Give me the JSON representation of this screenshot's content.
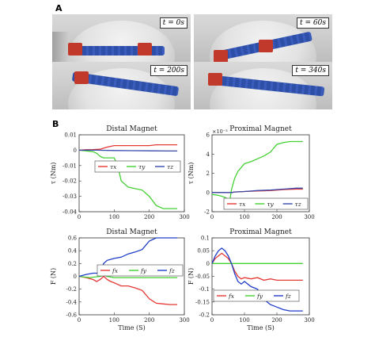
{
  "panel_a": {
    "letter": "A",
    "photos": [
      {
        "label": "t = 0s"
      },
      {
        "label": "t = 60s"
      },
      {
        "label": "t = 200s"
      },
      {
        "label": "t = 340s"
      }
    ]
  },
  "panel_b": {
    "letter": "B"
  },
  "chart_data": [
    {
      "type": "line",
      "title": "Distal Magnet",
      "xlabel": "",
      "ylabel": "τ (Nm)",
      "xlim": [
        0,
        300
      ],
      "ylim": [
        -0.04,
        0.01
      ],
      "xticks": [
        "0",
        "100",
        "200",
        "300"
      ],
      "yticks": [
        "0.01",
        "0",
        "-0.01",
        "-0.02",
        "-0.03",
        "-0.04"
      ],
      "legend_position": "center-right",
      "series": [
        {
          "name": "τx",
          "color": "#e53935",
          "x": [
            0,
            20,
            40,
            60,
            80,
            100,
            120,
            140,
            160,
            180,
            200,
            220,
            240,
            260,
            280
          ],
          "y": [
            0,
            0.0003,
            0.0004,
            0.0006,
            0.002,
            0.003,
            0.003,
            0.003,
            0.003,
            0.003,
            0.003,
            0.0035,
            0.0035,
            0.0035,
            0.0035
          ]
        },
        {
          "name": "τy",
          "color": "#43d133",
          "x": [
            0,
            20,
            40,
            50,
            60,
            70,
            80,
            100,
            110,
            120,
            140,
            160,
            180,
            200,
            220,
            240,
            260,
            280
          ],
          "y": [
            0,
            -0.0005,
            -0.001,
            -0.002,
            -0.004,
            -0.005,
            -0.005,
            -0.005,
            -0.01,
            -0.02,
            -0.024,
            -0.025,
            -0.026,
            -0.03,
            -0.036,
            -0.038,
            -0.038,
            -0.038
          ]
        },
        {
          "name": "τz",
          "color": "#3949ab",
          "x": [
            0,
            50,
            100,
            150,
            200,
            250,
            280
          ],
          "y": [
            0,
            0,
            -0.0002,
            -0.0003,
            -0.0004,
            -0.0005,
            -0.0005
          ]
        }
      ]
    },
    {
      "type": "line",
      "title": "Proximal Magnet",
      "xlabel": "",
      "ylabel": "τ (Nm)",
      "exponent_label": "×10⁻³",
      "xlim": [
        0,
        300
      ],
      "ylim": [
        -2,
        6
      ],
      "xticks": [
        "0",
        "100",
        "200",
        "300"
      ],
      "yticks": [
        "6",
        "4",
        "2",
        "0",
        "-2"
      ],
      "legend_position": "bottom-right",
      "series": [
        {
          "name": "τx",
          "color": "#e53935",
          "x": [
            0,
            40,
            60,
            70,
            100,
            140,
            180,
            220,
            260,
            280
          ],
          "y": [
            0,
            0,
            0,
            0.05,
            0.1,
            0.15,
            0.2,
            0.3,
            0.35,
            0.35
          ]
        },
        {
          "name": "τy",
          "color": "#43d133",
          "x": [
            0,
            20,
            40,
            55,
            60,
            70,
            80,
            100,
            120,
            140,
            160,
            180,
            200,
            220,
            240,
            260,
            280
          ],
          "y": [
            -0.2,
            -0.3,
            -0.5,
            -0.8,
            0.3,
            1.5,
            2.2,
            3.0,
            3.2,
            3.5,
            3.8,
            4.2,
            5.0,
            5.2,
            5.3,
            5.3,
            5.3
          ]
        },
        {
          "name": "τz",
          "color": "#3949ab",
          "x": [
            0,
            40,
            60,
            70,
            100,
            140,
            180,
            220,
            260,
            280
          ],
          "y": [
            0,
            0,
            0,
            0.05,
            0.1,
            0.2,
            0.25,
            0.35,
            0.45,
            0.45
          ]
        }
      ]
    },
    {
      "type": "line",
      "title": "Distal Magnet",
      "xlabel": "Time (S)",
      "ylabel": "F (N)",
      "xlim": [
        0,
        300
      ],
      "ylim": [
        -0.6,
        0.6
      ],
      "xticks": [
        "0",
        "100",
        "200",
        "300"
      ],
      "yticks": [
        "0.6",
        "0.4",
        "0.2",
        "0",
        "-0.2",
        "-0.4",
        "-0.6"
      ],
      "legend_position": "center-right",
      "series": [
        {
          "name": "fx",
          "color": "#e53935",
          "x": [
            0,
            20,
            40,
            50,
            60,
            70,
            80,
            90,
            100,
            120,
            140,
            160,
            180,
            200,
            220,
            240,
            260,
            280
          ],
          "y": [
            0,
            -0.02,
            -0.05,
            -0.08,
            -0.05,
            0.0,
            -0.05,
            -0.08,
            -0.1,
            -0.15,
            -0.15,
            -0.18,
            -0.22,
            -0.35,
            -0.42,
            -0.43,
            -0.44,
            -0.44
          ]
        },
        {
          "name": "fy",
          "color": "#43d133",
          "x": [
            0,
            30,
            60,
            70,
            80,
            100,
            150,
            200,
            250,
            280
          ],
          "y": [
            0,
            -0.02,
            0.0,
            0.02,
            0.0,
            -0.02,
            -0.02,
            -0.02,
            -0.02,
            -0.02
          ]
        },
        {
          "name": "fz",
          "color": "#1e3dc8",
          "x": [
            0,
            20,
            40,
            50,
            60,
            70,
            80,
            100,
            120,
            140,
            160,
            180,
            200,
            220,
            240,
            260,
            280
          ],
          "y": [
            0,
            0.03,
            0.05,
            0.05,
            0.05,
            0.2,
            0.25,
            0.28,
            0.3,
            0.35,
            0.38,
            0.42,
            0.55,
            0.6,
            0.6,
            0.6,
            0.6
          ]
        }
      ]
    },
    {
      "type": "line",
      "title": "Proximal Magnet",
      "xlabel": "Time (S)",
      "ylabel": "F (N)",
      "xlim": [
        0,
        300
      ],
      "ylim": [
        -0.2,
        0.1
      ],
      "xticks": [
        "0",
        "100",
        "200",
        "300"
      ],
      "yticks": [
        "0.1",
        "0.05",
        "0",
        "-0.05",
        "-0.1",
        "-0.15",
        "-0.2"
      ],
      "legend_position": "bottom-left",
      "series": [
        {
          "name": "fx",
          "color": "#e53935",
          "x": [
            0,
            10,
            20,
            30,
            40,
            50,
            60,
            70,
            80,
            90,
            100,
            120,
            140,
            160,
            180,
            200,
            220,
            240,
            260,
            280
          ],
          "y": [
            0,
            0.02,
            0.03,
            0.04,
            0.03,
            0.02,
            0.0,
            -0.03,
            -0.05,
            -0.06,
            -0.055,
            -0.06,
            -0.055,
            -0.065,
            -0.06,
            -0.065,
            -0.065,
            -0.065,
            -0.065,
            -0.065
          ]
        },
        {
          "name": "fy",
          "color": "#43d133",
          "x": [
            0,
            50,
            100,
            150,
            200,
            250,
            280
          ],
          "y": [
            0,
            0,
            0,
            0,
            0,
            0,
            0
          ]
        },
        {
          "name": "fz",
          "color": "#1e3dc8",
          "x": [
            0,
            10,
            20,
            30,
            40,
            50,
            60,
            70,
            80,
            90,
            100,
            120,
            140,
            160,
            180,
            200,
            220,
            240,
            260,
            280
          ],
          "y": [
            0,
            0.03,
            0.05,
            0.06,
            0.05,
            0.03,
            0.0,
            -0.04,
            -0.07,
            -0.08,
            -0.07,
            -0.09,
            -0.1,
            -0.14,
            -0.16,
            -0.17,
            -0.18,
            -0.185,
            -0.185,
            -0.185
          ]
        }
      ]
    }
  ]
}
